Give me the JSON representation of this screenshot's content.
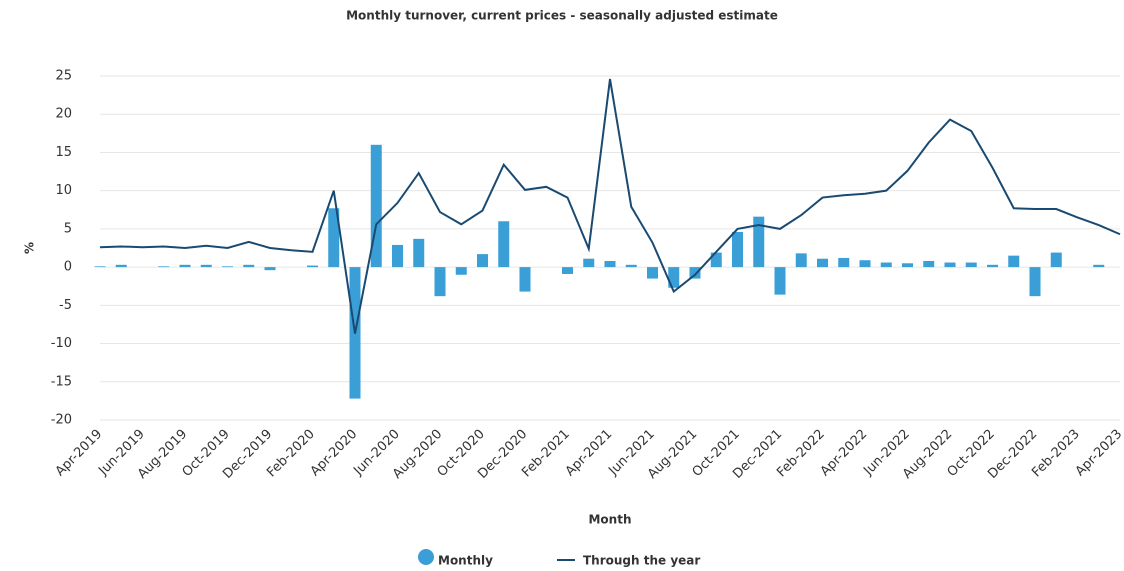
{
  "chart_data": {
    "type": "bar_line",
    "title": "Monthly turnover, current prices - seasonally adjusted estimate",
    "x_label": "Month",
    "y_label": "%",
    "categories": [
      "Apr-2019",
      null,
      "Jun-2019",
      null,
      "Aug-2019",
      null,
      "Oct-2019",
      null,
      "Dec-2019",
      null,
      "Feb-2020",
      null,
      "Apr-2020",
      null,
      "Jun-2020",
      null,
      "Aug-2020",
      null,
      "Oct-2020",
      null,
      "Dec-2020",
      null,
      "Feb-2021",
      null,
      "Apr-2021",
      null,
      "Jun-2021",
      null,
      "Aug-2021",
      null,
      "Oct-2021",
      null,
      "Dec-2021",
      null,
      "Feb-2022",
      null,
      "Apr-2022",
      null,
      "Jun-2022",
      null,
      "Aug-2022",
      null,
      "Oct-2022",
      null,
      "Dec-2022",
      null,
      "Feb-2023",
      null,
      "Apr-2023"
    ],
    "series": [
      {
        "name": "Monthly",
        "kind": "bar",
        "color": "#3a9fd6",
        "values": [
          0.1,
          0.3,
          0.0,
          0.1,
          0.3,
          0.3,
          0.1,
          0.3,
          -0.4,
          0.0,
          0.2,
          7.7,
          -17.2,
          16.0,
          2.9,
          3.7,
          -3.8,
          -1.0,
          1.7,
          6.0,
          -3.2,
          0.0,
          -0.9,
          1.1,
          0.8,
          0.3,
          -1.5,
          -2.7,
          -1.5,
          1.9,
          4.6,
          6.6,
          -3.6,
          1.8,
          1.1,
          1.2,
          0.9,
          0.6,
          0.5,
          0.8,
          0.6,
          0.6,
          0.3,
          1.5,
          -3.8,
          1.9,
          0.0,
          0.3,
          0.0
        ]
      },
      {
        "name": "Through the year",
        "kind": "line",
        "color": "#1a4a72",
        "values": [
          2.6,
          2.7,
          2.6,
          2.7,
          2.5,
          2.8,
          2.5,
          3.3,
          2.5,
          2.2,
          2.0,
          10.0,
          -8.7,
          5.6,
          8.4,
          12.3,
          7.2,
          5.6,
          7.4,
          13.4,
          10.1,
          10.5,
          9.1,
          2.4,
          24.6,
          7.9,
          3.2,
          -3.2,
          -1.0,
          2.0,
          5.0,
          5.5,
          5.0,
          6.8,
          9.1,
          9.4,
          9.6,
          10.0,
          12.6,
          16.3,
          19.3,
          17.8,
          13.0,
          7.7,
          7.6,
          7.6,
          6.5,
          5.5,
          4.3
        ]
      }
    ],
    "ylim": [
      -20,
      25
    ],
    "yticks": [
      -20,
      -15,
      -10,
      -5,
      0,
      5,
      10,
      15,
      20,
      25
    ],
    "grid": true,
    "legend": "bottom"
  }
}
